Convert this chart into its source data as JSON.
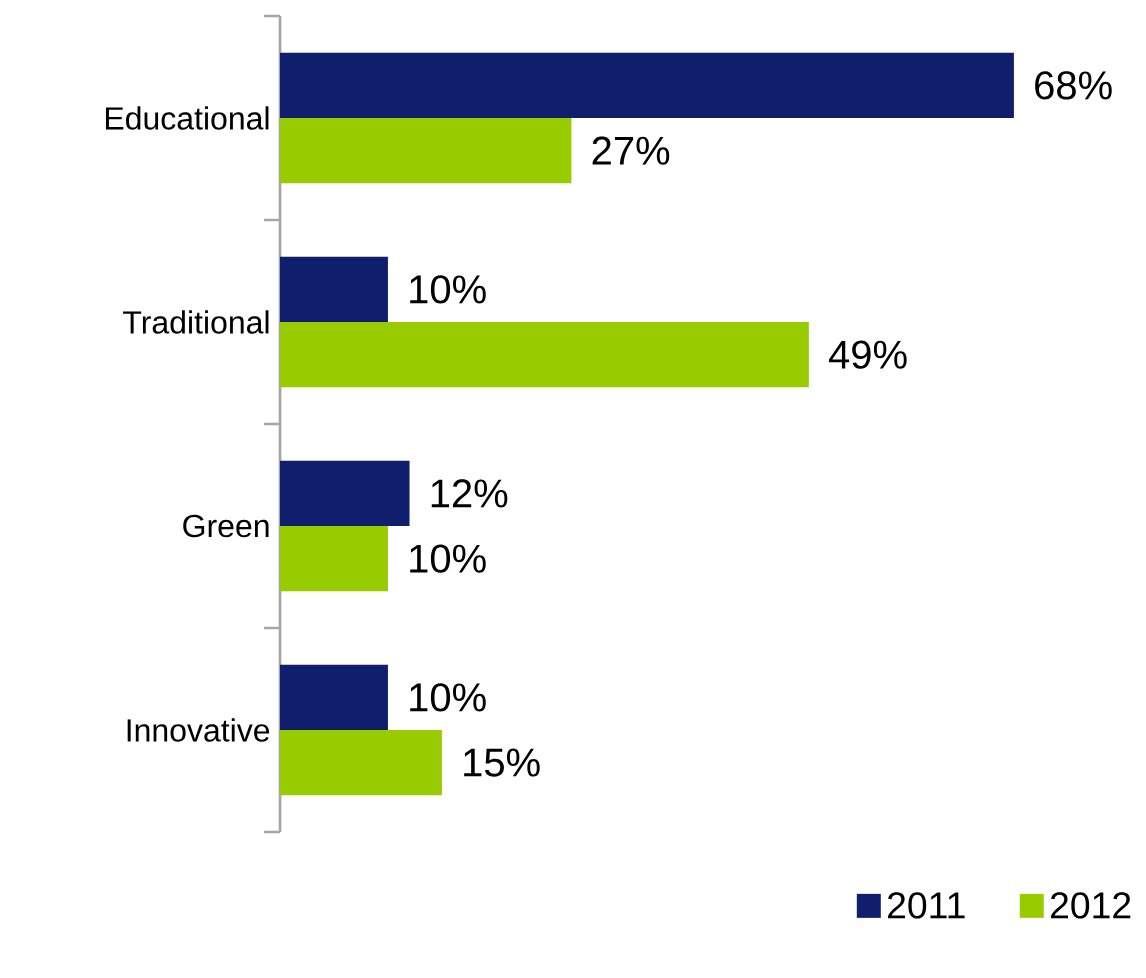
{
  "chart_data": {
    "type": "bar",
    "orientation": "horizontal",
    "categories": [
      "Educational",
      "Traditional",
      "Green",
      "Innovative"
    ],
    "series": [
      {
        "name": "2011",
        "color": "#0f1f6e",
        "values": [
          68,
          10,
          12,
          10
        ],
        "value_labels": [
          "68%",
          "10%",
          "12%",
          "10%"
        ]
      },
      {
        "name": "2012",
        "color": "#99cc00",
        "values": [
          27,
          49,
          10,
          15
        ],
        "value_labels": [
          "27%",
          "49%",
          "10%",
          "15%"
        ]
      }
    ],
    "tick_labels": "y",
    "legend": "bottom right"
  }
}
